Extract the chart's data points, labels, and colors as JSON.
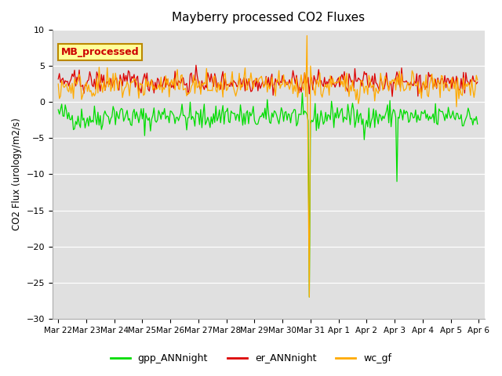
{
  "title": "Mayberry processed CO2 Fluxes",
  "ylabel": "CO2 Flux (urology/m2/s)",
  "ylim": [
    -30,
    10
  ],
  "yticks": [
    10,
    5,
    0,
    -5,
    -10,
    -15,
    -20,
    -25,
    -30
  ],
  "bg_color": "#e0e0e0",
  "fig_bg_color": "#ffffff",
  "legend_label": "MB_processed",
  "legend_bg": "#ffff99",
  "legend_edge": "#bb8800",
  "gpp_color": "#00dd00",
  "er_color": "#dd0000",
  "wc_color": "#ffaa00",
  "date_labels": [
    "Mar 22",
    "Mar 23",
    "Mar 24",
    "Mar 25",
    "Mar 26",
    "Mar 27",
    "Mar 28",
    "Mar 29",
    "Mar 30",
    "Mar 31",
    "Apr 1",
    "Apr 2",
    "Apr 3",
    "Apr 4",
    "Apr 5",
    "Apr 6"
  ],
  "n_points": 360,
  "seed": 42
}
